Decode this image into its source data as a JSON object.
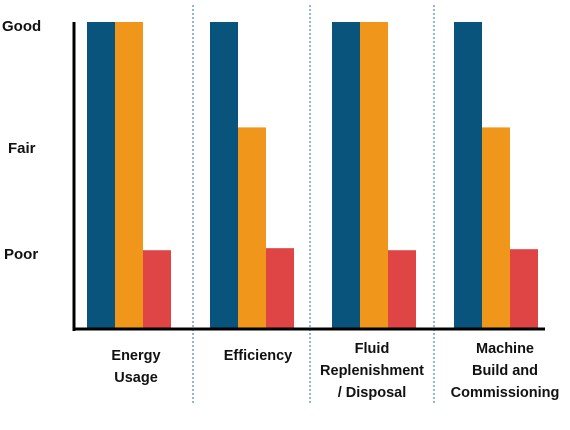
{
  "chart_data": {
    "type": "bar",
    "title": "",
    "xlabel": "",
    "ylabel": "",
    "y_levels": [
      "Poor",
      "Fair",
      "Good"
    ],
    "ylim": [
      0,
      3
    ],
    "categories": [
      [
        "Energy",
        "Usage"
      ],
      [
        "Efficiency"
      ],
      [
        "Fluid",
        "Replenishment",
        "/ Disposal"
      ],
      [
        "Machine",
        "Build and",
        "Commissioning"
      ]
    ],
    "series": [
      {
        "color": "#08547d",
        "values": [
          3,
          3,
          3,
          3
        ]
      },
      {
        "color": "#f0961a",
        "values": [
          3,
          1.97,
          3,
          1.97
        ]
      },
      {
        "color": "#e04545",
        "values": [
          0.77,
          0.79,
          0.77,
          0.78
        ]
      }
    ],
    "grid": false,
    "legend": "none",
    "separators": "dotted-vertical",
    "separator_color": "#2b6cb0",
    "axis_color": "#000000"
  }
}
